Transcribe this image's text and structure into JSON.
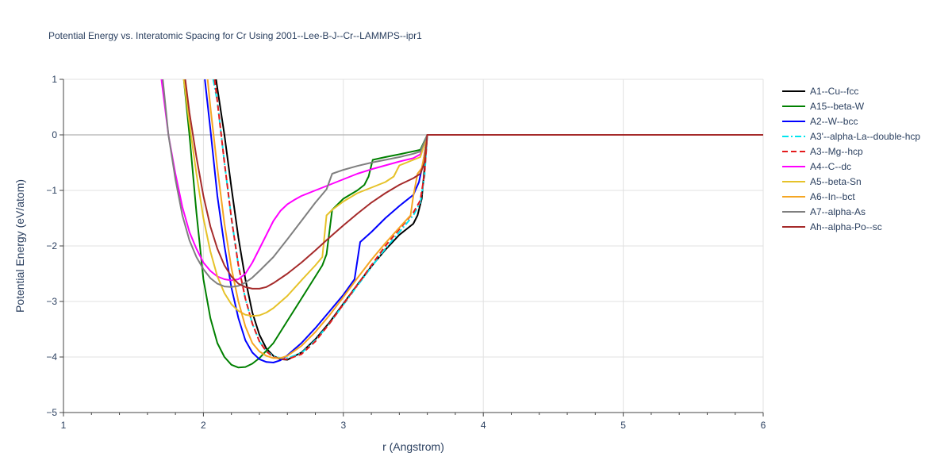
{
  "chart_data": {
    "type": "line",
    "title": "Potential Energy vs. Interatomic Spacing for Cr Using 2001--Lee-B-J--Cr--LAMMPS--ipr1",
    "xlabel": "r (Angstrom)",
    "ylabel": "Potential Energy (eV/atom)",
    "xlim": [
      1,
      6
    ],
    "ylim": [
      -5,
      1
    ],
    "xticks": [
      1,
      2,
      3,
      4,
      5,
      6
    ],
    "yticks": [
      -5,
      -4,
      -3,
      -2,
      -1,
      0,
      1
    ],
    "xtick_labels": [
      "1",
      "2",
      "3",
      "4",
      "5",
      "6"
    ],
    "ytick_labels": [
      "−5",
      "−4",
      "−3",
      "−2",
      "−1",
      "0",
      "1"
    ],
    "grid": true,
    "legend_position": "right",
    "series": [
      {
        "name": "A1--Cu--fcc",
        "color": "#000000",
        "dash": "solid",
        "x": [
          2.09,
          2.15,
          2.2,
          2.25,
          2.3,
          2.35,
          2.4,
          2.45,
          2.5,
          2.55,
          2.6,
          2.7,
          2.8,
          2.9,
          3.0,
          3.1,
          3.2,
          3.3,
          3.4,
          3.5,
          3.53,
          3.56,
          3.58,
          3.6,
          4.0,
          5.0,
          6.0
        ],
        "y": [
          1.0,
          0.0,
          -0.95,
          -1.85,
          -2.6,
          -3.2,
          -3.6,
          -3.85,
          -3.98,
          -4.04,
          -4.05,
          -3.92,
          -3.68,
          -3.38,
          -3.04,
          -2.7,
          -2.37,
          -2.07,
          -1.8,
          -1.6,
          -1.45,
          -1.15,
          -0.6,
          0.0,
          0.0,
          0.0,
          0.0
        ]
      },
      {
        "name": "A15--beta-W",
        "color": "#008000",
        "dash": "solid",
        "x": [
          1.86,
          1.9,
          1.95,
          2.0,
          2.05,
          2.1,
          2.15,
          2.2,
          2.25,
          2.3,
          2.35,
          2.4,
          2.5,
          2.6,
          2.7,
          2.8,
          2.85,
          2.88,
          2.92,
          3.0,
          3.1,
          3.15,
          3.18,
          3.21,
          3.3,
          3.4,
          3.55,
          3.6,
          4.0,
          5.0,
          6.0
        ],
        "y": [
          1.0,
          0.0,
          -1.4,
          -2.6,
          -3.3,
          -3.75,
          -4.0,
          -4.14,
          -4.19,
          -4.18,
          -4.12,
          -4.02,
          -3.75,
          -3.35,
          -2.95,
          -2.55,
          -2.35,
          -2.15,
          -1.35,
          -1.15,
          -1.0,
          -0.9,
          -0.75,
          -0.45,
          -0.4,
          -0.35,
          -0.27,
          0.0,
          0.0,
          0.0,
          0.0
        ]
      },
      {
        "name": "A2--W--bcc",
        "color": "#0000ff",
        "dash": "solid",
        "x": [
          2.01,
          2.05,
          2.1,
          2.15,
          2.2,
          2.25,
          2.3,
          2.35,
          2.4,
          2.45,
          2.5,
          2.55,
          2.6,
          2.7,
          2.8,
          2.9,
          3.0,
          3.08,
          3.12,
          3.2,
          3.3,
          3.4,
          3.5,
          3.54,
          3.57,
          3.6,
          4.0,
          5.0,
          6.0
        ],
        "y": [
          1.0,
          0.1,
          -1.1,
          -2.0,
          -2.75,
          -3.3,
          -3.7,
          -3.92,
          -4.04,
          -4.09,
          -4.1,
          -4.06,
          -3.97,
          -3.75,
          -3.48,
          -3.18,
          -2.88,
          -2.6,
          -1.93,
          -1.75,
          -1.5,
          -1.28,
          -1.08,
          -0.85,
          -0.5,
          0.0,
          0.0,
          0.0,
          0.0
        ]
      },
      {
        "name": "A3'--alpha-La--double-hcp",
        "color": "#00e5ee",
        "dash": "dashdot",
        "x": [
          2.07,
          2.1,
          2.15,
          2.2,
          2.25,
          2.3,
          2.35,
          2.4,
          2.45,
          2.5,
          2.55,
          2.6,
          2.7,
          2.8,
          2.9,
          3.0,
          3.1,
          3.2,
          3.3,
          3.4,
          3.5,
          3.55,
          3.58,
          3.6,
          4.0,
          5.0,
          6.0
        ],
        "y": [
          1.0,
          0.6,
          -0.5,
          -1.5,
          -2.35,
          -2.95,
          -3.4,
          -3.72,
          -3.9,
          -3.98,
          -4.02,
          -4.02,
          -3.93,
          -3.7,
          -3.4,
          -3.06,
          -2.72,
          -2.38,
          -2.05,
          -1.75,
          -1.45,
          -1.22,
          -0.75,
          0.0,
          0.0,
          0.0,
          0.0
        ]
      },
      {
        "name": "A3--Mg--hcp",
        "color": "#e41a1c",
        "dash": "dash",
        "x": [
          2.08,
          2.1,
          2.15,
          2.2,
          2.25,
          2.3,
          2.35,
          2.4,
          2.45,
          2.5,
          2.55,
          2.6,
          2.7,
          2.8,
          2.9,
          3.0,
          3.1,
          3.2,
          3.3,
          3.4,
          3.5,
          3.55,
          3.58,
          3.6,
          4.0,
          5.0,
          6.0
        ],
        "y": [
          1.0,
          0.6,
          -0.5,
          -1.5,
          -2.35,
          -2.95,
          -3.4,
          -3.72,
          -3.9,
          -4.0,
          -4.04,
          -4.04,
          -3.95,
          -3.72,
          -3.4,
          -3.05,
          -2.7,
          -2.35,
          -2.0,
          -1.7,
          -1.4,
          -1.18,
          -0.7,
          0.0,
          0.0,
          0.0,
          0.0
        ]
      },
      {
        "name": "A4--C--dc",
        "color": "#ff00ff",
        "dash": "solid",
        "x": [
          1.7,
          1.75,
          1.8,
          1.85,
          1.9,
          1.95,
          2.0,
          2.05,
          2.1,
          2.15,
          2.2,
          2.25,
          2.3,
          2.35,
          2.4,
          2.45,
          2.5,
          2.55,
          2.6,
          2.65,
          2.7,
          2.8,
          2.9,
          3.0,
          3.1,
          3.2,
          3.3,
          3.4,
          3.5,
          3.55,
          3.6,
          4.0,
          5.0,
          6.0
        ],
        "y": [
          1.0,
          0.0,
          -0.7,
          -1.3,
          -1.75,
          -2.05,
          -2.3,
          -2.45,
          -2.55,
          -2.6,
          -2.62,
          -2.6,
          -2.5,
          -2.3,
          -2.05,
          -1.8,
          -1.55,
          -1.37,
          -1.25,
          -1.17,
          -1.1,
          -1.0,
          -0.9,
          -0.8,
          -0.7,
          -0.62,
          -0.55,
          -0.48,
          -0.42,
          -0.35,
          0.0,
          0.0,
          0.0,
          0.0
        ]
      },
      {
        "name": "A5--beta-Sn",
        "color": "#e6c229",
        "dash": "solid",
        "x": [
          1.86,
          1.9,
          1.95,
          2.0,
          2.05,
          2.1,
          2.15,
          2.2,
          2.25,
          2.3,
          2.35,
          2.4,
          2.45,
          2.5,
          2.6,
          2.7,
          2.8,
          2.85,
          2.88,
          2.92,
          3.0,
          3.1,
          3.2,
          3.3,
          3.36,
          3.4,
          3.5,
          3.55,
          3.6,
          4.0,
          5.0,
          6.0
        ],
        "y": [
          1.0,
          0.2,
          -0.7,
          -1.5,
          -2.1,
          -2.55,
          -2.85,
          -3.05,
          -3.17,
          -3.24,
          -3.26,
          -3.25,
          -3.2,
          -3.12,
          -2.9,
          -2.62,
          -2.35,
          -2.2,
          -1.45,
          -1.35,
          -1.2,
          -1.05,
          -0.95,
          -0.85,
          -0.75,
          -0.55,
          -0.45,
          -0.4,
          0.0,
          0.0,
          0.0,
          0.0
        ]
      },
      {
        "name": "A6--In--bct",
        "color": "#f5a623",
        "dash": "solid",
        "x": [
          2.03,
          2.05,
          2.1,
          2.15,
          2.2,
          2.25,
          2.3,
          2.35,
          2.4,
          2.45,
          2.5,
          2.55,
          2.6,
          2.7,
          2.8,
          2.9,
          3.0,
          3.1,
          3.2,
          3.3,
          3.4,
          3.48,
          3.5,
          3.53,
          3.56,
          3.58,
          3.6,
          4.0,
          5.0,
          6.0
        ],
        "y": [
          1.0,
          0.5,
          -0.6,
          -1.6,
          -2.4,
          -3.0,
          -3.45,
          -3.75,
          -3.9,
          -3.98,
          -4.02,
          -4.02,
          -3.98,
          -3.8,
          -3.55,
          -3.25,
          -2.92,
          -2.58,
          -2.25,
          -1.95,
          -1.67,
          -1.45,
          -1.1,
          -0.7,
          -0.6,
          -0.35,
          0.0,
          0.0,
          0.0,
          0.0
        ]
      },
      {
        "name": "A7--alpha-As",
        "color": "#7f7f7f",
        "dash": "solid",
        "x": [
          1.71,
          1.75,
          1.8,
          1.85,
          1.9,
          1.95,
          2.0,
          2.05,
          2.1,
          2.15,
          2.2,
          2.25,
          2.3,
          2.35,
          2.4,
          2.5,
          2.6,
          2.7,
          2.8,
          2.88,
          2.92,
          3.0,
          3.1,
          3.2,
          3.3,
          3.4,
          3.5,
          3.55,
          3.6,
          4.0,
          5.0,
          6.0
        ],
        "y": [
          1.0,
          0.0,
          -0.8,
          -1.45,
          -1.9,
          -2.2,
          -2.42,
          -2.58,
          -2.68,
          -2.73,
          -2.74,
          -2.72,
          -2.66,
          -2.57,
          -2.45,
          -2.2,
          -1.88,
          -1.55,
          -1.22,
          -0.98,
          -0.7,
          -0.63,
          -0.56,
          -0.5,
          -0.45,
          -0.4,
          -0.34,
          -0.3,
          0.0,
          0.0,
          0.0,
          0.0
        ]
      },
      {
        "name": "Ah--alpha-Po--sc",
        "color": "#a52a2a",
        "dash": "solid",
        "x": [
          1.87,
          1.9,
          1.95,
          2.0,
          2.05,
          2.1,
          2.15,
          2.2,
          2.25,
          2.3,
          2.35,
          2.4,
          2.45,
          2.5,
          2.6,
          2.7,
          2.8,
          2.9,
          3.0,
          3.1,
          3.2,
          3.3,
          3.4,
          3.5,
          3.55,
          3.58,
          3.6,
          4.0,
          5.0,
          6.0
        ],
        "y": [
          1.0,
          0.4,
          -0.4,
          -1.1,
          -1.65,
          -2.05,
          -2.35,
          -2.55,
          -2.68,
          -2.74,
          -2.77,
          -2.77,
          -2.74,
          -2.67,
          -2.5,
          -2.3,
          -2.08,
          -1.85,
          -1.63,
          -1.42,
          -1.22,
          -1.05,
          -0.9,
          -0.78,
          -0.7,
          -0.5,
          0.0,
          0.0,
          0.0,
          0.0
        ]
      }
    ]
  }
}
